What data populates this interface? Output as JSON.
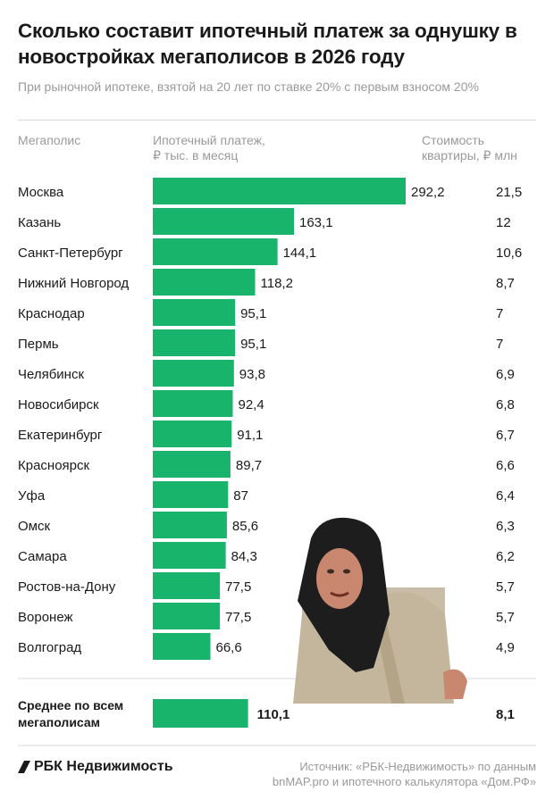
{
  "header": {
    "title": "Сколько составит ипотечный платеж за однушку в новостройках мегаполисов в 2026 году",
    "subtitle": "При рыночной ипотеке, взятой на 20 лет по ставке 20% с первым взносом 20%"
  },
  "columns": {
    "city": "Мегаполис",
    "payment_line1": "Ипотечный платеж,",
    "payment_line2": "₽ тыс. в месяц",
    "price_line1": "Стоимость",
    "price_line2": "квартиры, ₽ млн"
  },
  "colors": {
    "bar": "#19b46c",
    "text": "#1a1a1a",
    "muted": "#9a9a9a",
    "divider": "#dadada"
  },
  "chart_data": {
    "type": "bar",
    "orientation": "horizontal",
    "categories": [
      "Москва",
      "Казань",
      "Санкт-Петербург",
      "Нижний Новгород",
      "Краснодар",
      "Пермь",
      "Челябинск",
      "Новосибирск",
      "Екатеринбург",
      "Красноярск",
      "Уфа",
      "Омск",
      "Самара",
      "Ростов-на-Дону",
      "Воронеж",
      "Волгоград"
    ],
    "values": [
      292.2,
      163.1,
      144.1,
      118.2,
      95.1,
      95.1,
      93.8,
      92.4,
      91.1,
      89.7,
      87,
      85.6,
      84.3,
      77.5,
      77.5,
      66.6
    ],
    "value_labels": [
      "292,2",
      "163,1",
      "144,1",
      "118,2",
      "95,1",
      "95,1",
      "93,8",
      "92,4",
      "91,1",
      "89,7",
      "87",
      "85,6",
      "84,3",
      "77,5",
      "77,5",
      "66,6"
    ],
    "prices": [
      "21,5",
      "12",
      "10,6",
      "8,7",
      "7",
      "7",
      "6,9",
      "6,8",
      "6,7",
      "6,6",
      "6,4",
      "6,3",
      "6,2",
      "5,7",
      "5,7",
      "4,9"
    ],
    "average": {
      "label_line1": "Среднее по всем",
      "label_line2": "мегаполисам",
      "value": 110.1,
      "value_label": "110,1",
      "price": "8,1"
    }
  },
  "footer": {
    "logo_text": "РБК Недвижимость",
    "source_line1": "Источник: «РБК-Недвижимость» по данным",
    "source_line2": "bnMAP.pro и ипотечного калькулятора «Дом.РФ»"
  }
}
